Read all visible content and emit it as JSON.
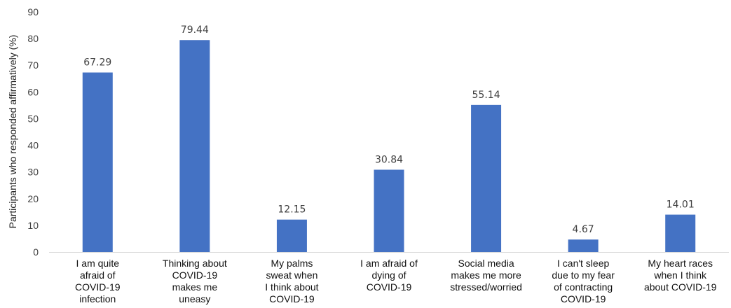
{
  "chart_data": {
    "type": "bar",
    "title": "",
    "xlabel": "",
    "ylabel": "Participants who responded affirmatively (%)",
    "ylim": [
      0,
      90
    ],
    "yticks": [
      0,
      10,
      20,
      30,
      40,
      50,
      60,
      70,
      80,
      90
    ],
    "grid": false,
    "legend": "none",
    "bar_color": "#4472C4",
    "categories": [
      [
        "I am quite",
        "afraid of",
        "COVID-19",
        "infection"
      ],
      [
        "Thinking about",
        "COVID-19",
        "makes me",
        "uneasy"
      ],
      [
        "My palms",
        "sweat when",
        "I think about",
        "COVID-19"
      ],
      [
        "I am afraid of",
        "dying of",
        "COVID-19"
      ],
      [
        "Social media",
        "makes me more",
        "stressed/worried"
      ],
      [
        "I can't sleep",
        "due to my fear",
        "of contracting",
        "COVID-19"
      ],
      [
        "My heart races",
        "when I think",
        "about COVID-19"
      ]
    ],
    "values": [
      67.29,
      79.44,
      12.15,
      30.84,
      55.14,
      4.67,
      14.01
    ],
    "data_labels": [
      "67.29",
      "79.44",
      "12.15",
      "30.84",
      "55.14",
      "4.67",
      "14.01"
    ]
  }
}
